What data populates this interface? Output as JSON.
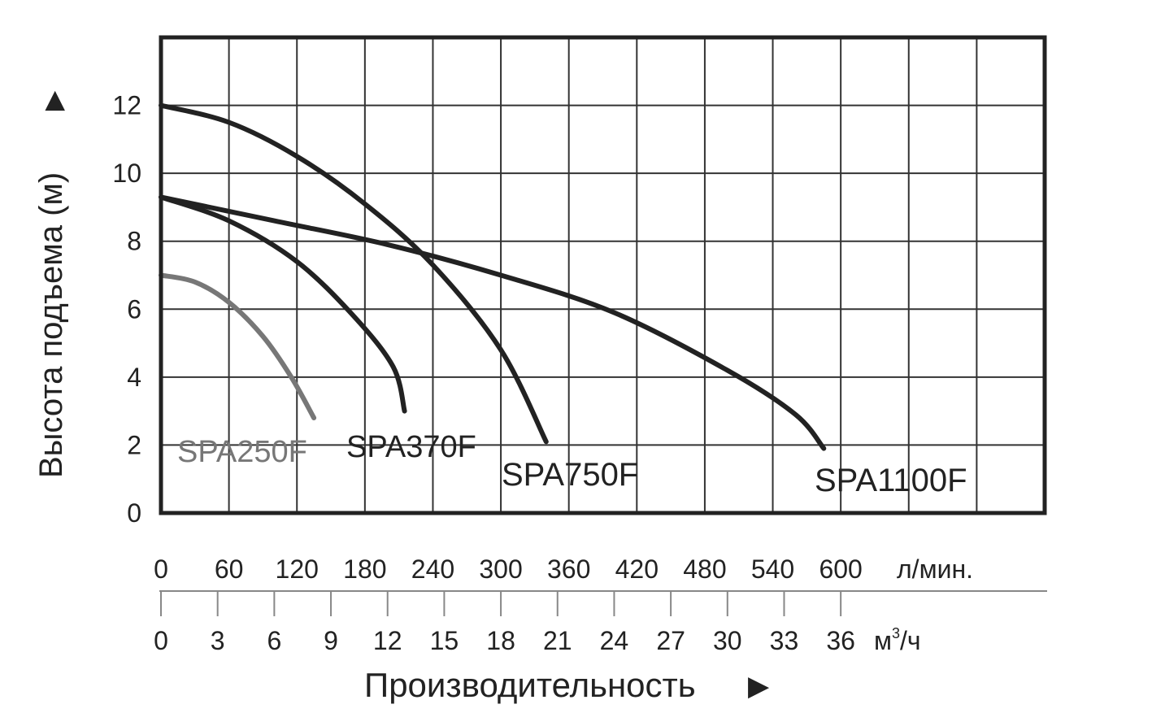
{
  "chart_data": {
    "type": "line",
    "y_axis": {
      "label": "Высота подъема (м)",
      "arrow": "▶",
      "ylim": [
        0,
        14
      ],
      "ticks": [
        0,
        2,
        4,
        6,
        8,
        10,
        12
      ]
    },
    "x_axis": {
      "label": "Производительность",
      "arrow": "▶",
      "xlim": [
        0,
        780
      ],
      "primary_unit": "л/мин.",
      "primary_ticks": [
        0,
        60,
        120,
        180,
        240,
        300,
        360,
        420,
        480,
        540,
        600
      ],
      "secondary_unit_base": "м",
      "secondary_unit_sup": "3",
      "secondary_unit_tail": "/ч",
      "secondary_ticks": [
        0,
        3,
        6,
        9,
        12,
        15,
        18,
        21,
        24,
        27,
        30,
        33,
        36
      ]
    },
    "grid": true,
    "series": [
      {
        "name": "SPA250F",
        "color": "#777777",
        "points": [
          [
            0,
            7.0
          ],
          [
            30,
            6.8
          ],
          [
            60,
            6.2
          ],
          [
            90,
            5.2
          ],
          [
            115,
            4.0
          ],
          [
            135,
            2.8
          ]
        ]
      },
      {
        "name": "SPA370F",
        "color": "#222222",
        "points": [
          [
            0,
            9.3
          ],
          [
            60,
            8.6
          ],
          [
            120,
            7.4
          ],
          [
            170,
            5.8
          ],
          [
            205,
            4.3
          ],
          [
            215,
            3.0
          ]
        ]
      },
      {
        "name": "SPA750F",
        "color": "#222222",
        "points": [
          [
            0,
            12.0
          ],
          [
            60,
            11.5
          ],
          [
            120,
            10.5
          ],
          [
            180,
            9.1
          ],
          [
            240,
            7.3
          ],
          [
            300,
            4.8
          ],
          [
            340,
            2.1
          ]
        ]
      },
      {
        "name": "SPA1100F",
        "color": "#222222",
        "points": [
          [
            0,
            9.3
          ],
          [
            100,
            8.6
          ],
          [
            200,
            7.9
          ],
          [
            300,
            7.0
          ],
          [
            400,
            5.9
          ],
          [
            500,
            4.2
          ],
          [
            560,
            2.9
          ],
          [
            585,
            1.9
          ]
        ]
      }
    ]
  }
}
